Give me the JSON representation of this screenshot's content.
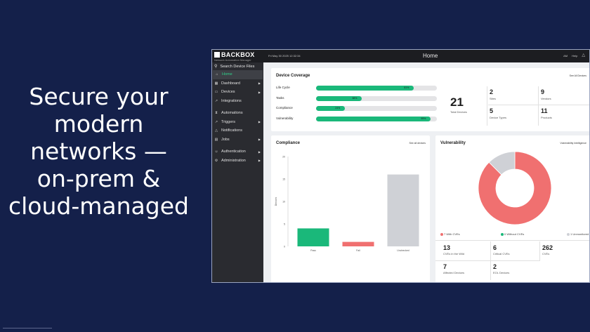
{
  "slide": {
    "headline_lines": [
      "Secure your",
      "modern",
      "networks —",
      "on-prem &",
      "cloud-managed"
    ]
  },
  "app": {
    "brand": "BACKBOX",
    "brand_subtitle": "Network Automation Manager",
    "datetime": "Fri May 30 2025 12:32:34",
    "page_title": "Home",
    "top_actions": [
      "AM",
      "Help"
    ],
    "sidebar": {
      "search_label": "Search Device Files",
      "items": [
        {
          "label": "Home",
          "icon": "home-icon",
          "active": true,
          "chevron": false
        },
        {
          "label": "Dashboard",
          "icon": "dashboard-icon",
          "active": false,
          "chevron": true
        },
        {
          "label": "Devices",
          "icon": "devices-icon",
          "active": false,
          "chevron": true
        },
        {
          "label": "Integrations",
          "icon": "integrations-icon",
          "active": false,
          "chevron": false
        },
        {
          "label": "Automations",
          "icon": "automations-icon",
          "active": false,
          "chevron": false
        },
        {
          "label": "Triggers",
          "icon": "triggers-icon",
          "active": false,
          "chevron": true
        },
        {
          "label": "Notifications",
          "icon": "bell-icon",
          "active": false,
          "chevron": false
        },
        {
          "label": "Jobs",
          "icon": "jobs-icon",
          "active": false,
          "chevron": true
        },
        {
          "label": "Authentication",
          "icon": "authentication-icon",
          "active": false,
          "chevron": true
        },
        {
          "label": "Administration",
          "icon": "gear-icon",
          "active": false,
          "chevron": true
        }
      ]
    },
    "coverage": {
      "title": "Device Coverage",
      "link": "See All Devices",
      "bars": [
        {
          "label": "Life Cycle",
          "pct": 81,
          "pct_label": "81%"
        },
        {
          "label": "Tasks",
          "pct": 38,
          "pct_label": "38%"
        },
        {
          "label": "Compliance",
          "pct": 24,
          "pct_label": "24%"
        },
        {
          "label": "Vulnerability",
          "pct": 95,
          "pct_label": "95%"
        }
      ],
      "total_value": "21",
      "total_label": "Total Devices",
      "stats": [
        {
          "value": "2",
          "label": "Sites"
        },
        {
          "value": "9",
          "label": "Vendors"
        },
        {
          "value": "5",
          "label": "Device Types"
        },
        {
          "value": "11",
          "label": "Products"
        }
      ]
    },
    "compliance": {
      "title": "Compliance",
      "link": "See all devices",
      "chart_data": {
        "type": "bar",
        "categories": [
          "Pass",
          "Fail",
          "Unchecked"
        ],
        "values": [
          4,
          1,
          16
        ],
        "ylabel": "Devices",
        "ylim": [
          0,
          20
        ],
        "yticks": [
          0,
          5,
          10,
          15,
          20
        ],
        "colors": [
          "#1ab87a",
          "#f07070",
          "#cfd1d6"
        ],
        "grid": false
      }
    },
    "vulnerability": {
      "title": "Vulnerability",
      "link": "Vulnerability Intelligence",
      "chart_data": {
        "type": "pie",
        "donut": true,
        "slices": [
          {
            "label": "7 With CVEs",
            "value": 7,
            "color": "#f07070"
          },
          {
            "label": "0 Without CVEs",
            "value": 0,
            "color": "#1ab87a"
          },
          {
            "label": "1 Unmonitored",
            "value": 1,
            "color": "#cfd1d6"
          }
        ],
        "legend": "bottom"
      },
      "stats": [
        {
          "value": "13",
          "label": "CVEs in the Wild"
        },
        {
          "value": "6",
          "label": "Critical CVEs"
        },
        {
          "value": "262",
          "label": "CVEs"
        },
        {
          "value": "7",
          "label": "Affected Devices"
        },
        {
          "value": "2",
          "label": "EOL Devices"
        }
      ]
    }
  }
}
